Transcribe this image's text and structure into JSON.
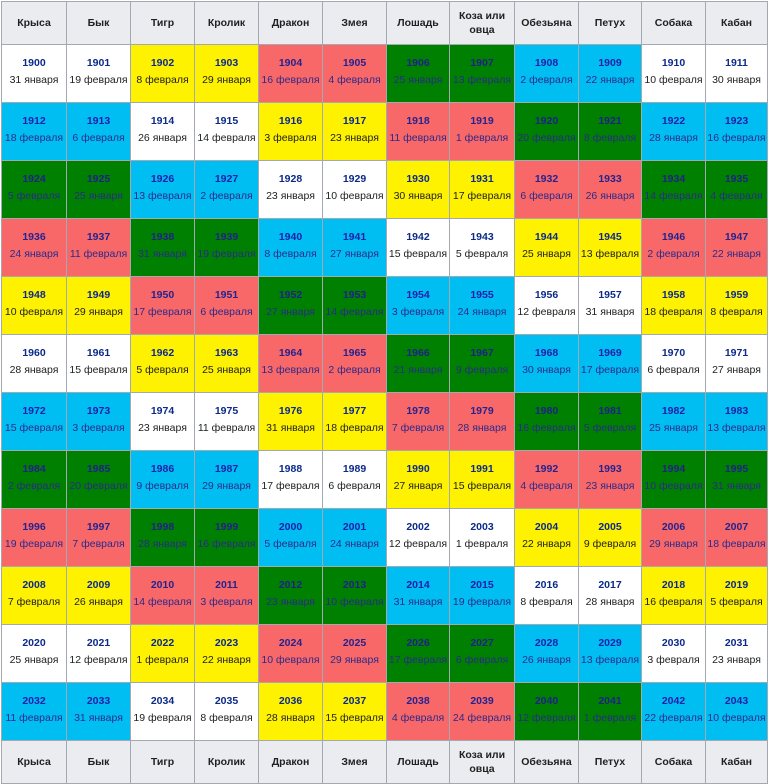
{
  "header": [
    "Крыса",
    "Бык",
    "Тигр",
    "Кролик",
    "Дракон",
    "Змея",
    "Лошадь",
    "Коза или овца",
    "Обезьяна",
    "Петух",
    "Собака",
    "Кабан"
  ],
  "footer": [
    "Крыса",
    "Бык",
    "Тигр",
    "Кролик",
    "Дракон",
    "Змея",
    "Лошадь",
    "Коза или овца",
    "Обезьяна",
    "Петух",
    "Собака",
    "Кабан"
  ],
  "element_colors": {
    "white": "#ffffff",
    "yellow": "#fff200",
    "blue": "#00bdf2",
    "green": "#008000",
    "red": "#f96868"
  },
  "row_colors": [
    "white",
    "blue",
    "green",
    "red",
    "yellow",
    "white",
    "blue",
    "green",
    "red",
    "yellow",
    "white",
    "blue"
  ],
  "rows": [
    [
      [
        "1900",
        "31 января"
      ],
      [
        "1901",
        "19 февраля"
      ],
      [
        "1902",
        "8 февраля"
      ],
      [
        "1903",
        "29 января"
      ],
      [
        "1904",
        "16 февраля"
      ],
      [
        "1905",
        "4 февраля"
      ],
      [
        "1906",
        "25 января"
      ],
      [
        "1907",
        "13 февраля"
      ],
      [
        "1908",
        "2 февраля"
      ],
      [
        "1909",
        "22 января"
      ],
      [
        "1910",
        "10 февраля"
      ],
      [
        "1911",
        "30 января"
      ]
    ],
    [
      [
        "1912",
        "18 февраля"
      ],
      [
        "1913",
        "6 февраля"
      ],
      [
        "1914",
        "26 января"
      ],
      [
        "1915",
        "14 февраля"
      ],
      [
        "1916",
        "3 февраля"
      ],
      [
        "1917",
        "23 января"
      ],
      [
        "1918",
        "11 февраля"
      ],
      [
        "1919",
        "1 февраля"
      ],
      [
        "1920",
        "20 февраля"
      ],
      [
        "1921",
        "8 февраля"
      ],
      [
        "1922",
        "28 января"
      ],
      [
        "1923",
        "16 февраля"
      ]
    ],
    [
      [
        "1924",
        "5 февраля"
      ],
      [
        "1925",
        "25 января"
      ],
      [
        "1926",
        "13 февраля"
      ],
      [
        "1927",
        "2 февраля"
      ],
      [
        "1928",
        "23 января"
      ],
      [
        "1929",
        "10 февраля"
      ],
      [
        "1930",
        "30 января"
      ],
      [
        "1931",
        "17 февраля"
      ],
      [
        "1932",
        "6 февраля"
      ],
      [
        "1933",
        "26 января"
      ],
      [
        "1934",
        "14 февраля"
      ],
      [
        "1935",
        "4 февраля"
      ]
    ],
    [
      [
        "1936",
        "24 января"
      ],
      [
        "1937",
        "11 февраля"
      ],
      [
        "1938",
        "31 января"
      ],
      [
        "1939",
        "19 февраля"
      ],
      [
        "1940",
        "8 февраля"
      ],
      [
        "1941",
        "27 января"
      ],
      [
        "1942",
        "15 февраля"
      ],
      [
        "1943",
        "5 февраля"
      ],
      [
        "1944",
        "25 января"
      ],
      [
        "1945",
        "13 февраля"
      ],
      [
        "1946",
        "2 февраля"
      ],
      [
        "1947",
        "22 января"
      ]
    ],
    [
      [
        "1948",
        "10 февраля"
      ],
      [
        "1949",
        "29 января"
      ],
      [
        "1950",
        "17 февраля"
      ],
      [
        "1951",
        "6 февраля"
      ],
      [
        "1952",
        "27 января"
      ],
      [
        "1953",
        "14 февраля"
      ],
      [
        "1954",
        "3 февраля"
      ],
      [
        "1955",
        "24 января"
      ],
      [
        "1956",
        "12 февраля"
      ],
      [
        "1957",
        "31 января"
      ],
      [
        "1958",
        "18 февраля"
      ],
      [
        "1959",
        "8 февраля"
      ]
    ],
    [
      [
        "1960",
        "28 января"
      ],
      [
        "1961",
        "15 февраля"
      ],
      [
        "1962",
        "5 февраля"
      ],
      [
        "1963",
        "25 января"
      ],
      [
        "1964",
        "13 февраля"
      ],
      [
        "1965",
        "2 февраля"
      ],
      [
        "1966",
        "21 января"
      ],
      [
        "1967",
        "9 февраля"
      ],
      [
        "1968",
        "30 января"
      ],
      [
        "1969",
        "17 февраля"
      ],
      [
        "1970",
        "6 февраля"
      ],
      [
        "1971",
        "27 января"
      ]
    ],
    [
      [
        "1972",
        "15 февраля"
      ],
      [
        "1973",
        "3 февраля"
      ],
      [
        "1974",
        "23 января"
      ],
      [
        "1975",
        "11 февраля"
      ],
      [
        "1976",
        "31 января"
      ],
      [
        "1977",
        "18 февраля"
      ],
      [
        "1978",
        "7 февраля"
      ],
      [
        "1979",
        "28 января"
      ],
      [
        "1980",
        "16 февраля"
      ],
      [
        "1981",
        "5 февраля"
      ],
      [
        "1982",
        "25 января"
      ],
      [
        "1983",
        "13 февраля"
      ]
    ],
    [
      [
        "1984",
        "2 февраля"
      ],
      [
        "1985",
        "20 февраля"
      ],
      [
        "1986",
        "9 февраля"
      ],
      [
        "1987",
        "29 января"
      ],
      [
        "1988",
        "17 февраля"
      ],
      [
        "1989",
        "6 февраля"
      ],
      [
        "1990",
        "27 января"
      ],
      [
        "1991",
        "15 февраля"
      ],
      [
        "1992",
        "4 февраля"
      ],
      [
        "1993",
        "23 января"
      ],
      [
        "1994",
        "10 февраля"
      ],
      [
        "1995",
        "31 января"
      ]
    ],
    [
      [
        "1996",
        "19 февраля"
      ],
      [
        "1997",
        "7 февраля"
      ],
      [
        "1998",
        "28 января"
      ],
      [
        "1999",
        "16 февраля"
      ],
      [
        "2000",
        "5 февраля"
      ],
      [
        "2001",
        "24 января"
      ],
      [
        "2002",
        "12 февраля"
      ],
      [
        "2003",
        "1 февраля"
      ],
      [
        "2004",
        "22 января"
      ],
      [
        "2005",
        "9 февраля"
      ],
      [
        "2006",
        "29 января"
      ],
      [
        "2007",
        "18 февраля"
      ]
    ],
    [
      [
        "2008",
        "7 февраля"
      ],
      [
        "2009",
        "26 января"
      ],
      [
        "2010",
        "14 февраля"
      ],
      [
        "2011",
        "3 февраля"
      ],
      [
        "2012",
        "23 января"
      ],
      [
        "2013",
        "10 февраля"
      ],
      [
        "2014",
        "31 января"
      ],
      [
        "2015",
        "19 февраля"
      ],
      [
        "2016",
        "8 февраля"
      ],
      [
        "2017",
        "28 января"
      ],
      [
        "2018",
        "16 февраля"
      ],
      [
        "2019",
        "5 февраля"
      ]
    ],
    [
      [
        "2020",
        "25 января"
      ],
      [
        "2021",
        "12 февраля"
      ],
      [
        "2022",
        "1 февраля"
      ],
      [
        "2023",
        "22 января"
      ],
      [
        "2024",
        "10 февраля"
      ],
      [
        "2025",
        "29 января"
      ],
      [
        "2026",
        "17 февраля"
      ],
      [
        "2027",
        "6 февраля"
      ],
      [
        "2028",
        "26 января"
      ],
      [
        "2029",
        "13 февраля"
      ],
      [
        "2030",
        "3 февраля"
      ],
      [
        "2031",
        "23 января"
      ]
    ],
    [
      [
        "2032",
        "11 февраля"
      ],
      [
        "2033",
        "31 января"
      ],
      [
        "2034",
        "19 февраля"
      ],
      [
        "2035",
        "8 февраля"
      ],
      [
        "2036",
        "28 января"
      ],
      [
        "2037",
        "15 февраля"
      ],
      [
        "2038",
        "4 февраля"
      ],
      [
        "2039",
        "24 февраля"
      ],
      [
        "2040",
        "12 февраля"
      ],
      [
        "2041",
        "1 февраля"
      ],
      [
        "2042",
        "22 февраля"
      ],
      [
        "2043",
        "10 февраля"
      ]
    ]
  ]
}
